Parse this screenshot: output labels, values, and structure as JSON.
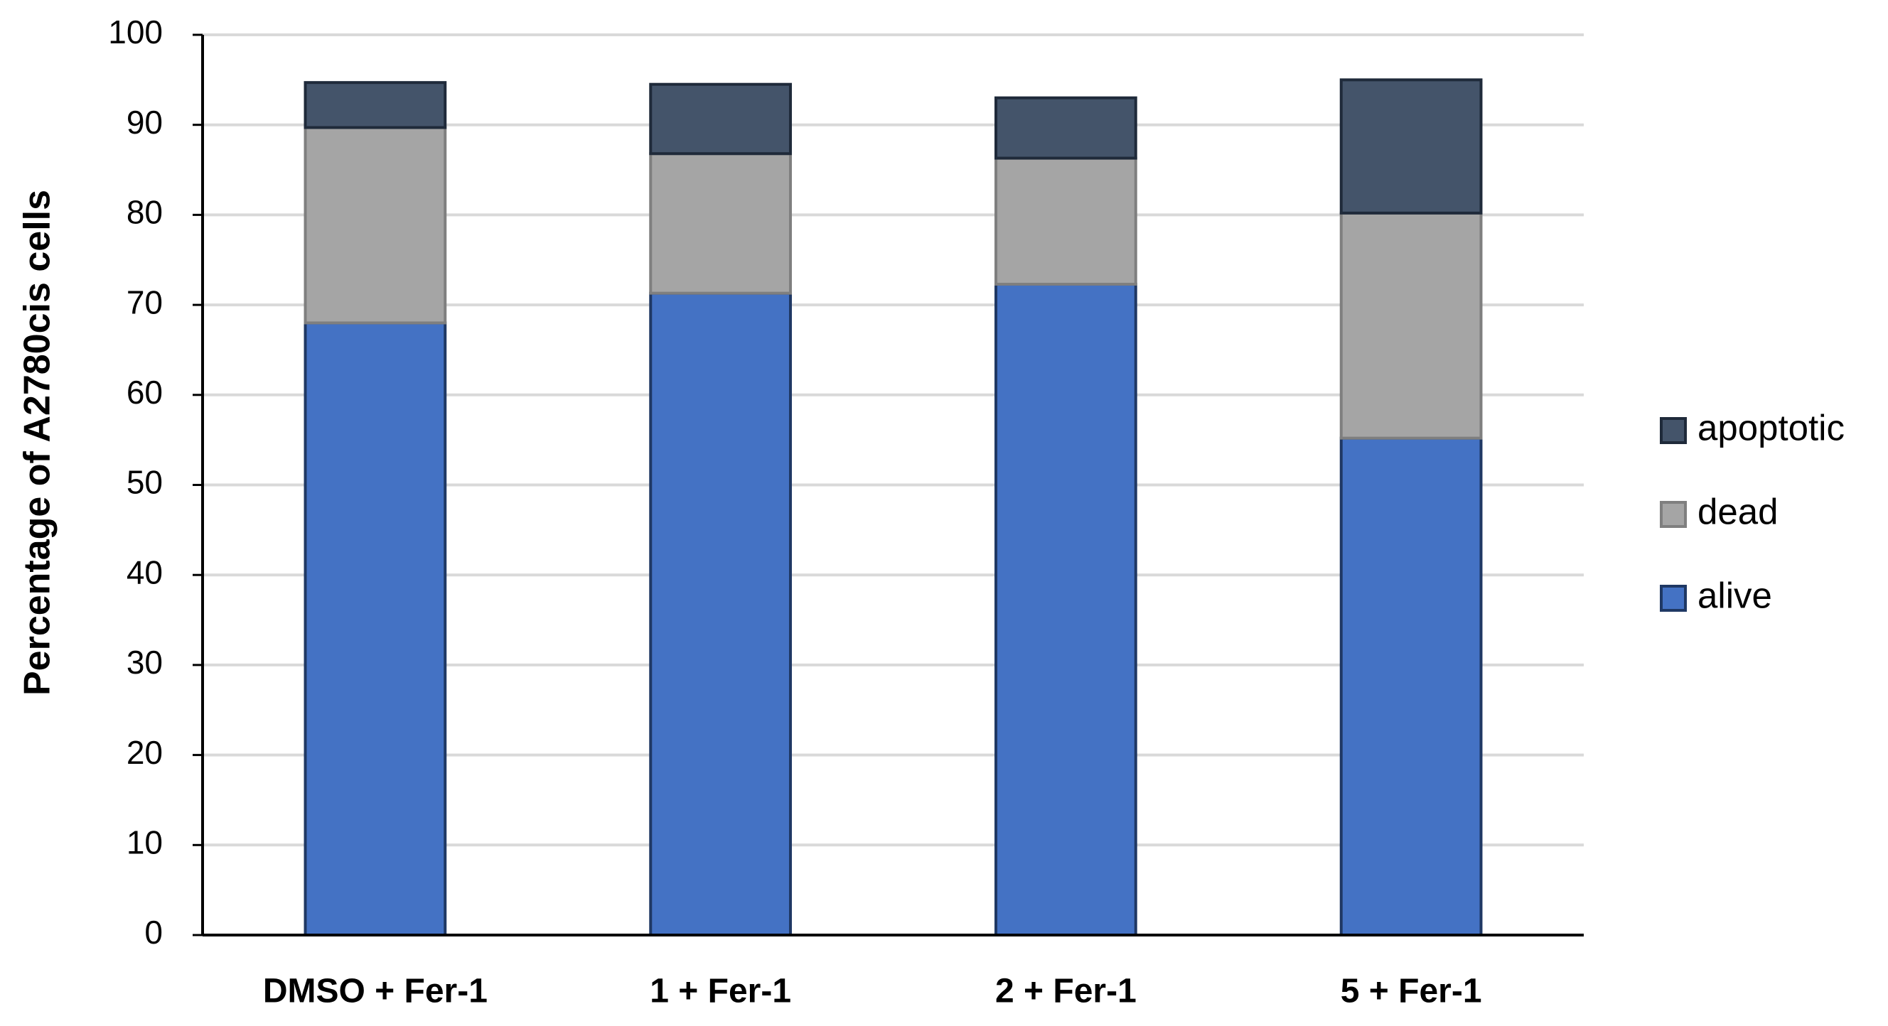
{
  "chart_data": {
    "type": "bar",
    "stacked": true,
    "y_label": "Percentage of A2780cis cells",
    "categories": [
      "DMSO + Fer-1",
      "1 + Fer-1",
      "2 + Fer-1",
      "5 + Fer-1"
    ],
    "series": [
      {
        "name": "alive",
        "color": "#4472c4",
        "values": [
          68,
          71.3,
          72.3,
          55.2
        ]
      },
      {
        "name": "dead",
        "color": "#a5a5a5",
        "values": [
          21.7,
          15.5,
          14,
          25
        ]
      },
      {
        "name": "apoptotic",
        "color": "#44546a",
        "values": [
          5,
          7.7,
          6.7,
          14.8
        ]
      }
    ],
    "ylim": [
      0,
      100
    ],
    "yticks": [
      0,
      10,
      20,
      30,
      40,
      50,
      60,
      70,
      80,
      90,
      100
    ],
    "grid": true,
    "legend": "right"
  }
}
